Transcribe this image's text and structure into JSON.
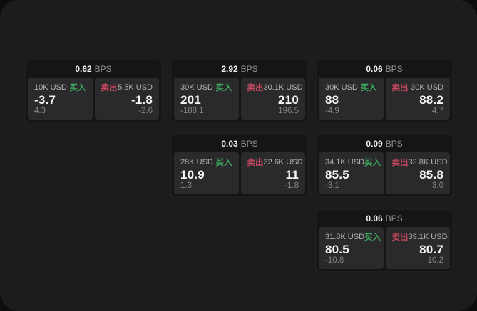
{
  "cards": [
    {
      "bps": "0.62",
      "bps_unit": "BPS",
      "buy": {
        "size": "10K USD",
        "action": "买入",
        "price": "-3.7",
        "delta": "4.3"
      },
      "sell": {
        "size": "5.5K USD",
        "action": "卖出",
        "price": "-1.8",
        "delta": "-2.6"
      }
    },
    {
      "bps": "2.92",
      "bps_unit": "BPS",
      "buy": {
        "size": "30K USD",
        "action": "买入",
        "price": "201",
        "delta": "-188.1"
      },
      "sell": {
        "size": "30.1K USD",
        "action": "卖出",
        "price": "210",
        "delta": "196.5"
      }
    },
    {
      "bps": "0.06",
      "bps_unit": "BPS",
      "buy": {
        "size": "30K USD",
        "action": "买入",
        "price": "88",
        "delta": "-4.9"
      },
      "sell": {
        "size": "30K USD",
        "action": "卖出",
        "price": "88.2",
        "delta": "4.7"
      }
    },
    {
      "bps": "0.03",
      "bps_unit": "BPS",
      "buy": {
        "size": "28K USD",
        "action": "买入",
        "price": "10.9",
        "delta": "1.3"
      },
      "sell": {
        "size": "32.6K USD",
        "action": "卖出",
        "price": "11",
        "delta": "-1.8"
      }
    },
    {
      "bps": "0.09",
      "bps_unit": "BPS",
      "buy": {
        "size": "34.1K USD",
        "action": "买入",
        "price": "85.5",
        "delta": "-3.1"
      },
      "sell": {
        "size": "32.8K USD",
        "action": "卖出",
        "price": "85.8",
        "delta": "3.0"
      }
    },
    {
      "bps": "0.06",
      "bps_unit": "BPS",
      "buy": {
        "size": "31.8K USD",
        "action": "买入",
        "price": "80.5",
        "delta": "-10.8"
      },
      "sell": {
        "size": "39.1K USD",
        "action": "卖出",
        "price": "80.7",
        "delta": "10.2"
      }
    }
  ]
}
